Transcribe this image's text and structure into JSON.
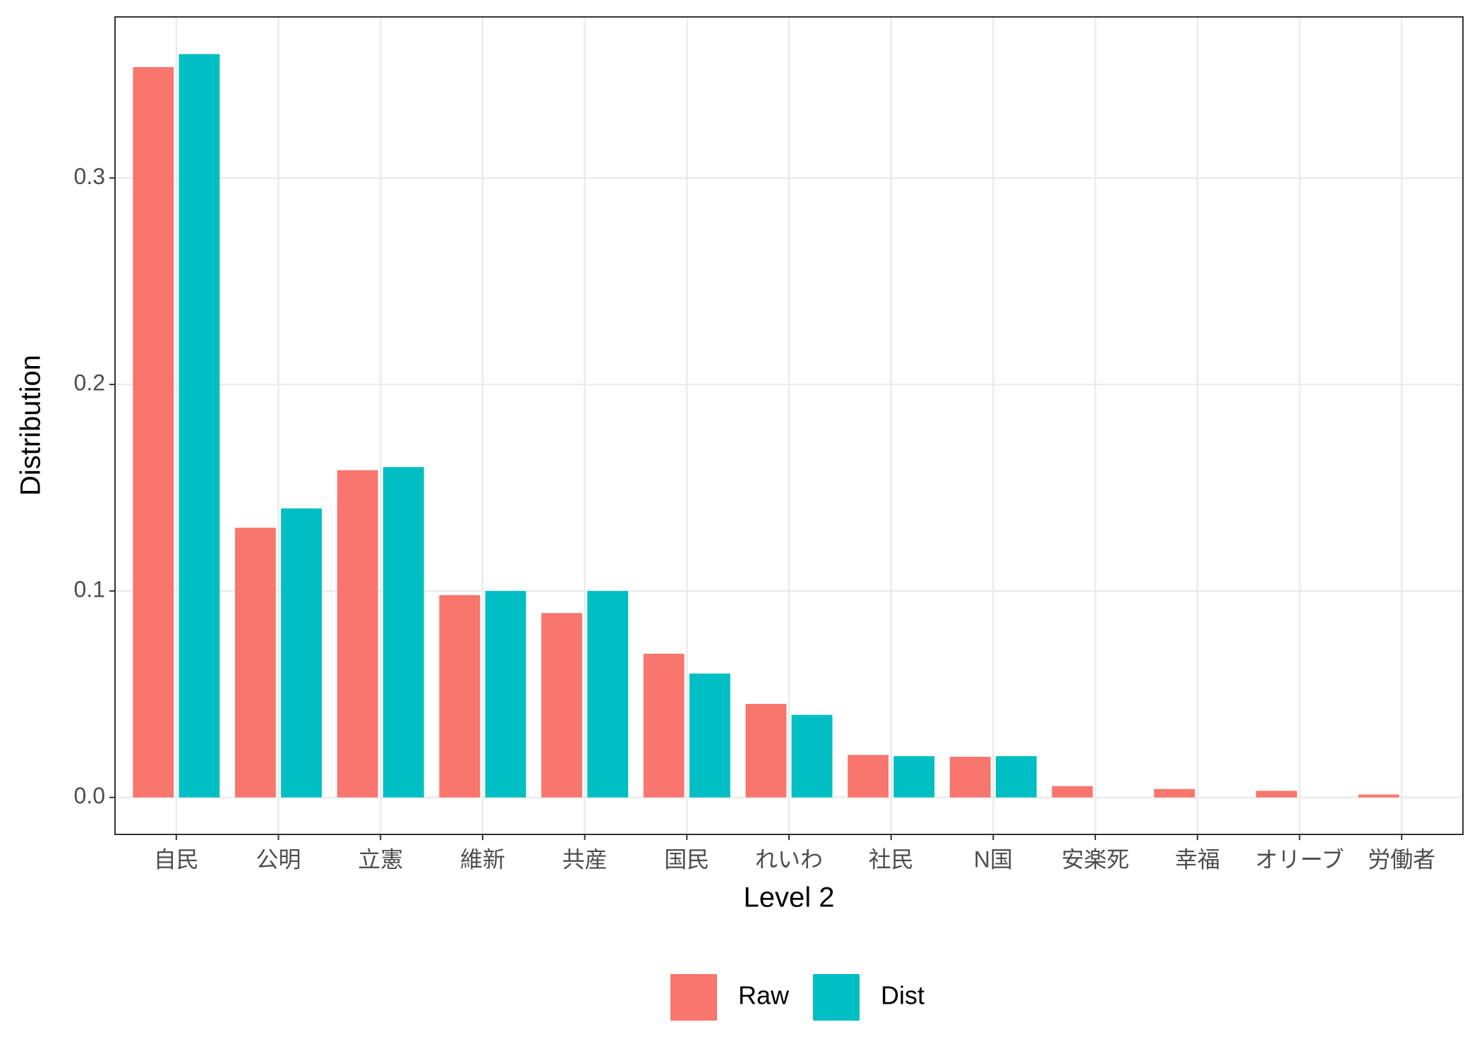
{
  "chart_data": {
    "type": "bar",
    "x_label": "Level 2",
    "y_label": "Distribution",
    "categories": [
      "自民",
      "公明",
      "立憲",
      "維新",
      "共産",
      "国民",
      "れいわ",
      "社民",
      "N国",
      "安楽死",
      "幸福",
      "オリーブ",
      "労働者"
    ],
    "series": [
      {
        "name": "Raw",
        "color": "#f8766d",
        "values": [
          0.3537,
          0.1306,
          0.1585,
          0.098,
          0.0893,
          0.0696,
          0.0453,
          0.0206,
          0.0197,
          0.0055,
          0.0041,
          0.0032,
          0.0014
        ]
      },
      {
        "name": "Dist",
        "color": "#00bfc4",
        "values": [
          0.36,
          0.14,
          0.16,
          0.1,
          0.1,
          0.06,
          0.04,
          0.02,
          0.02,
          0,
          0,
          0,
          0
        ]
      }
    ],
    "ylim": [
      -0.0179,
      0.378
    ],
    "yticks": [
      {
        "value": 0,
        "label": "0.0"
      },
      0.1,
      0.2,
      0.3
    ],
    "grid": true,
    "legend": "bottom"
  }
}
